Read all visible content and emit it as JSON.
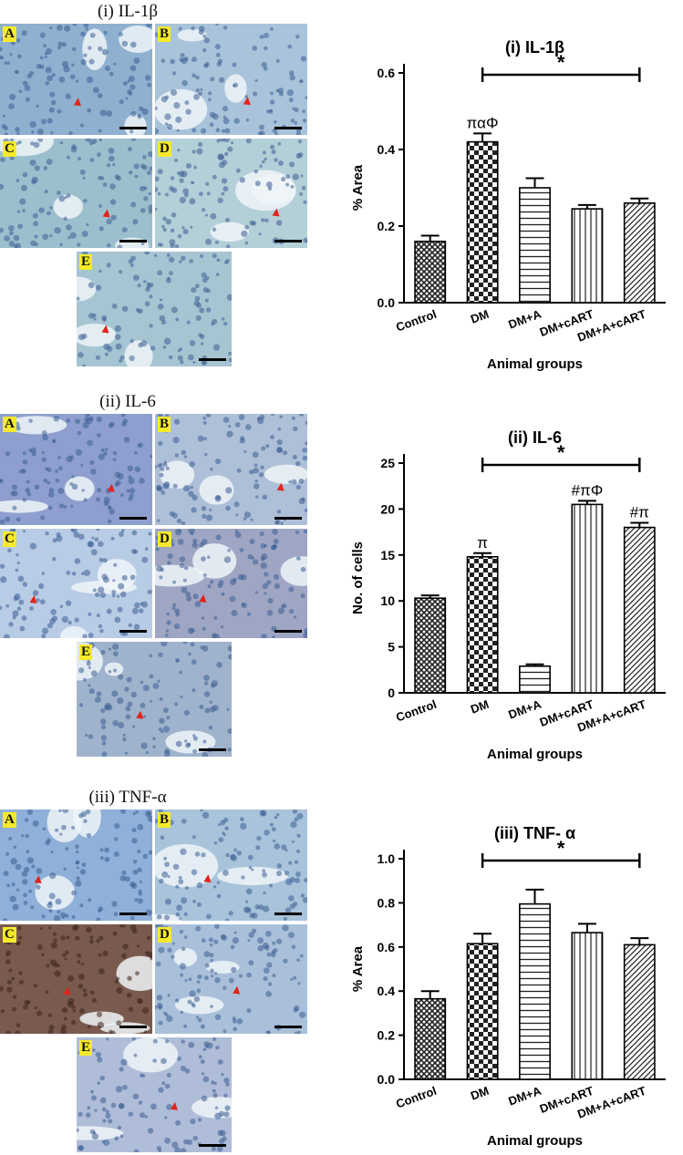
{
  "micrographs": [
    {
      "title": "(i) IL-1β",
      "panels": [
        "A",
        "B",
        "C",
        "D",
        "E"
      ],
      "tint": [
        "#8fb0cf",
        "#a9c3da",
        "#9cbfce",
        "#b3cfd8",
        "#a6c5d2"
      ]
    },
    {
      "title": "(ii) IL-6",
      "panels": [
        "A",
        "B",
        "C",
        "D",
        "E"
      ],
      "tint": [
        "#8e9fcf",
        "#aebfd8",
        "#b9cce6",
        "#9fa6c4",
        "#9fb3cc"
      ]
    },
    {
      "title": "(iii) TNF-α",
      "panels": [
        "A",
        "B",
        "C",
        "D",
        "E"
      ],
      "tint": [
        "#8fb0d8",
        "#a8c3da",
        "#7a5a4e",
        "#aac0da",
        "#b0bdd8"
      ]
    }
  ],
  "chart_data": [
    {
      "type": "bar",
      "title": "(i) IL-1β",
      "ylabel": "% Area",
      "xlabel": "Animal groups",
      "categories": [
        "Control",
        "DM",
        "DM+A",
        "DM+cART",
        "DM+A+cART"
      ],
      "values": [
        0.16,
        0.42,
        0.3,
        0.245,
        0.26
      ],
      "errors": [
        0.015,
        0.022,
        0.025,
        0.01,
        0.012
      ],
      "ylim": [
        0,
        0.6
      ],
      "yticks": [
        "0.0",
        "0.2",
        "0.4",
        "0.6"
      ],
      "annotations": [
        "",
        "παΦ",
        "",
        "",
        ""
      ],
      "significance": {
        "label": "*",
        "from": 1,
        "to": 4
      }
    },
    {
      "type": "bar",
      "title": "(ii) IL-6",
      "ylabel": "No. of cells",
      "xlabel": "Animal groups",
      "categories": [
        "Control",
        "DM",
        "DM+A",
        "DM+cART",
        "DM+A+cART"
      ],
      "values": [
        10.3,
        14.8,
        2.9,
        20.5,
        18.0
      ],
      "errors": [
        0.3,
        0.4,
        0.2,
        0.4,
        0.5
      ],
      "ylim": [
        0,
        25
      ],
      "yticks": [
        "0",
        "5",
        "10",
        "15",
        "20",
        "25"
      ],
      "annotations": [
        "",
        "π",
        "",
        "#πΦ",
        "#π"
      ],
      "significance": {
        "label": "*",
        "from": 1,
        "to": 4
      }
    },
    {
      "type": "bar",
      "title": "(iii) TNF- α",
      "ylabel": "% Area",
      "xlabel": "Animal groups",
      "categories": [
        "Control",
        "DM",
        "DM+A",
        "DM+cART",
        "DM+A+cART"
      ],
      "values": [
        0.365,
        0.615,
        0.795,
        0.665,
        0.61
      ],
      "errors": [
        0.035,
        0.045,
        0.065,
        0.04,
        0.03
      ],
      "ylim": [
        0,
        1.0
      ],
      "yticks": [
        "0.0",
        "0.2",
        "0.4",
        "0.6",
        "0.8",
        "1.0"
      ],
      "annotations": [
        "",
        "",
        "",
        "",
        ""
      ],
      "significance": {
        "label": "*",
        "from": 1,
        "to": 4
      }
    }
  ]
}
